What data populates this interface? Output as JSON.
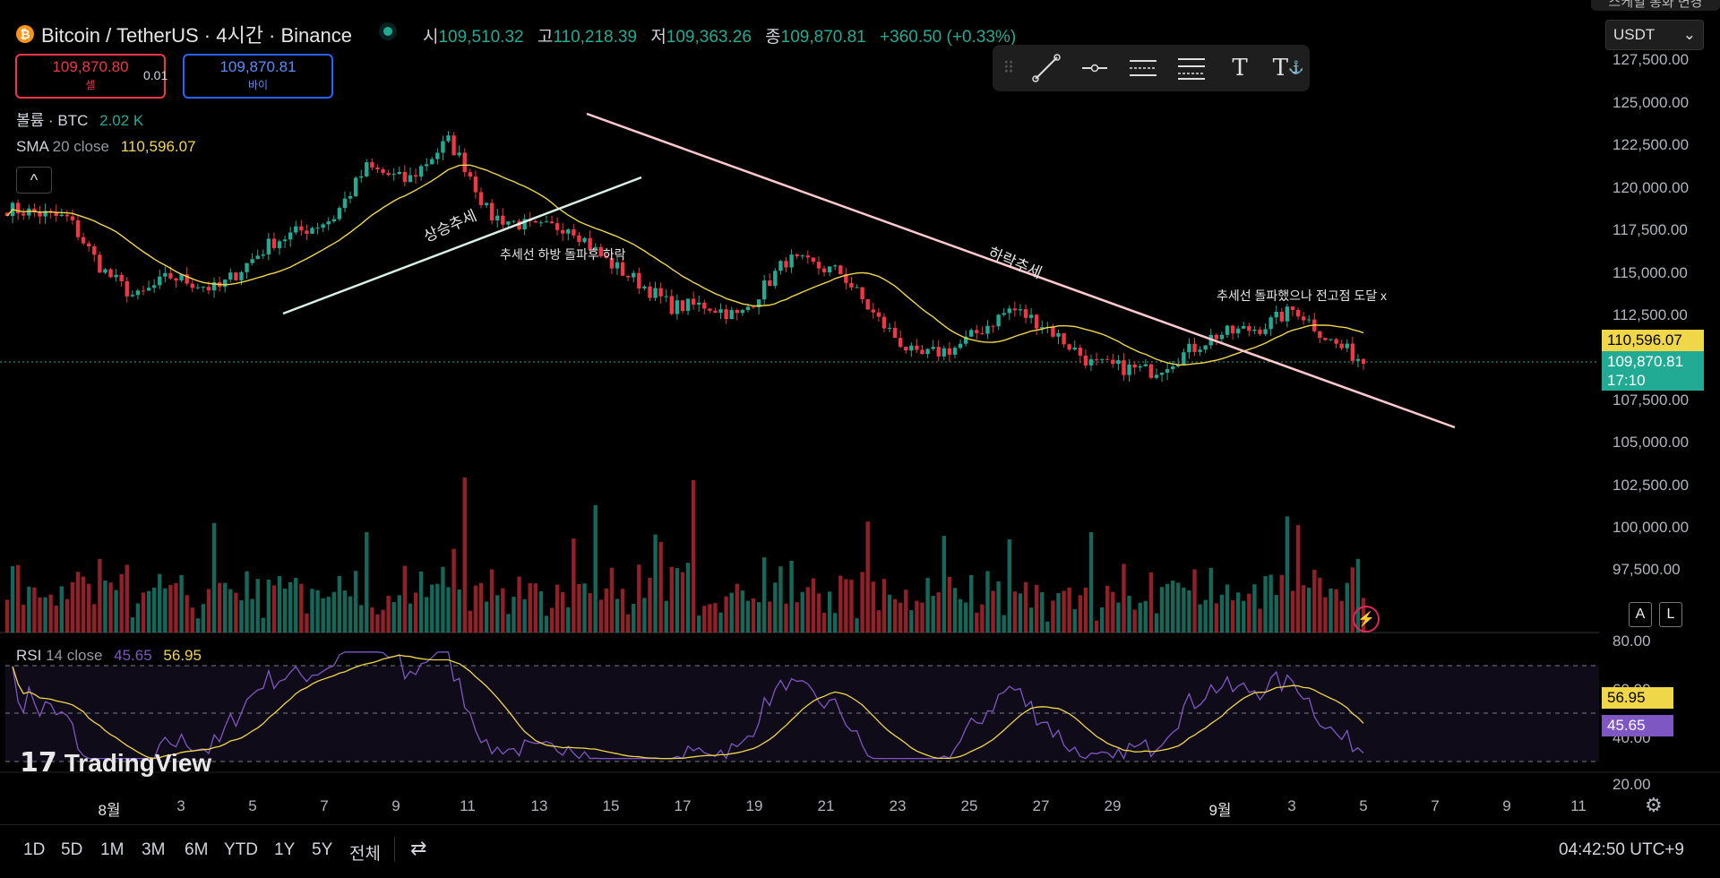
{
  "header": {
    "title": "Bitcoin / TetherUS · 4시간 · Binance",
    "ohlc": {
      "open_label": "시",
      "open": "109,510.32",
      "high_label": "고",
      "high": "110,218.39",
      "low_label": "저",
      "low": "109,363.26",
      "close_label": "종",
      "close": "109,870.81",
      "change": "+360.50 (+0.33%)"
    }
  },
  "trade": {
    "sell_price": "109,870.80",
    "sell_label": "셀",
    "spread": "0.01",
    "buy_price": "109,870.81",
    "buy_label": "바이"
  },
  "indicators": {
    "volume_label": "볼륨 · BTC",
    "volume_value": "2.02 K",
    "sma_label": "SMA",
    "sma_params": "20 close",
    "sma_value": "110,596.07",
    "collapse_icon": "^",
    "rsi_label": "RSI",
    "rsi_params": "14 close",
    "rsi_value": "45.65",
    "rsi_ma_value": "56.95"
  },
  "currency": {
    "selected": "USDT",
    "top_cut_text": "스케일 통화 변경"
  },
  "price_axis": [
    "127,500.00",
    "125,000.00",
    "122,500.00",
    "120,000.00",
    "117,500.00",
    "115,000.00",
    "112,500.00",
    "107,500.00",
    "105,000.00",
    "102,500.00",
    "100,000.00",
    "97,500.00"
  ],
  "price_tags": {
    "sma": "110,596.07",
    "last": "109,870.81",
    "countdown": "17:10"
  },
  "rsi_axis": [
    "80.00",
    "60.00",
    "40.00",
    "20.00"
  ],
  "rsi_tags": {
    "ma": "56.95",
    "rsi": "45.65"
  },
  "date_axis": [
    "8월",
    "3",
    "5",
    "7",
    "9",
    "11",
    "13",
    "15",
    "17",
    "19",
    "21",
    "23",
    "25",
    "27",
    "29",
    "9월",
    "3",
    "5",
    "7",
    "9",
    "11"
  ],
  "annotations": {
    "uptrend": "상승추세",
    "breakdown": "추세선 하방 돌파후 하락",
    "downtrend": "하락추세",
    "breakout": "추세선 돌파했으나 전고점 도달 x"
  },
  "range_buttons": [
    "1D",
    "5D",
    "1M",
    "3M",
    "6M",
    "YTD",
    "1Y",
    "5Y",
    "전체"
  ],
  "clock": "04:42:50 UTC+9",
  "watermark": "TradingView",
  "scale_buttons": {
    "auto": "A",
    "log": "L"
  },
  "toolbar_icons": [
    "drag-handle-icon",
    "trendline-icon",
    "horizontal-ray-icon",
    "parallel-channel-icon",
    "fib-icon",
    "text-icon",
    "anchored-text-icon"
  ],
  "colors": {
    "up": "#22ab94",
    "down": "#f23645",
    "sma": "#f0d74a",
    "rsi": "#7e57c2",
    "trend_up": "#d9f2e6",
    "trend_down": "#ffc9cf"
  }
}
